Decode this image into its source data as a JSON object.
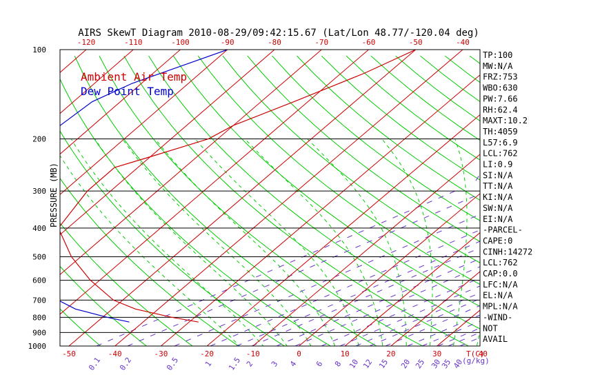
{
  "title": "AIRS SkewT Diagram 2010-08-29/09:42:15.67 (Lat/Lon 48.77/-120.04 deg)",
  "legend": [
    {
      "label": "Ambient Air Temp",
      "color": "#cc0000"
    },
    {
      "label": "Dew Point Temp",
      "color": "#0000cc"
    }
  ],
  "colors": {
    "isotherm": "#cc0000",
    "dry_adiabat": "#00cc00",
    "moist_adiabat": "#00cc00",
    "mixing_ratio": "#6633cc",
    "isobar": "#000000",
    "temperature_profile": "#cc0000",
    "dewpoint_profile": "#0000cc"
  },
  "axes": {
    "y_label": "PRESSURE (MB)",
    "x_unit_label": "T(C)",
    "mixing_ratio_unit_label": "(g/kg)",
    "pressure_ticks": [
      "100",
      "200",
      "300",
      "400",
      "500",
      "600",
      "700",
      "800",
      "900",
      "1000"
    ],
    "bottom_temp_ticks": [
      "-50",
      "-40",
      "-30",
      "-20",
      "-10",
      "0",
      "10",
      "20",
      "30",
      "40"
    ],
    "top_temp_ticks": [
      "-120",
      "-110",
      "-100",
      "-90",
      "-80",
      "-70",
      "-60",
      "-50",
      "-40"
    ],
    "mixing_ratio_ticks": [
      "0.1",
      "0.2",
      "0.5",
      "1",
      "1.5",
      "2",
      "3",
      "4",
      "6",
      "8",
      "10",
      "12",
      "15",
      "20",
      "25",
      "30",
      "35",
      "40"
    ]
  },
  "info_panel": [
    "TP:100",
    "MW:N/A",
    "FRZ:753",
    "WBO:630",
    "PW:7.66",
    "RH:62.4",
    "MAXT:10.2",
    "TH:4059",
    "L57:6.9",
    "LCL:762",
    "LI:0.9",
    "SI:N/A",
    "TT:N/A",
    "KI:N/A",
    "SW:N/A",
    "EI:N/A",
    "-PARCEL-",
    "CAPE:0",
    "CINH:14272",
    "LCL:762",
    "CAP:0.0",
    "LFC:N/A",
    "EL:N/A",
    "MPL:N/A",
    "-WIND-",
    "NOT",
    "AVAIL"
  ],
  "chart_data": {
    "type": "line",
    "title": "AIRS SkewT Diagram 2010-08-29/09:42:15.67 (Lat/Lon 48.77/-120.04 deg)",
    "xlabel": "T(C)",
    "ylabel": "PRESSURE (MB)",
    "y_scale": "log-pressure, inverted",
    "ylim": [
      1000,
      100
    ],
    "xlim_bottom": [
      -50,
      40
    ],
    "xlim_top": [
      -120,
      -40
    ],
    "grid": true,
    "legend_position": "top-left",
    "series": [
      {
        "name": "Ambient Air Temp",
        "pressure": [
          100,
          120,
          150,
          180,
          200,
          230,
          250,
          300,
          400,
          500,
          600,
          700,
          750,
          800,
          830
        ],
        "temperature": [
          -50,
          -55,
          -63,
          -70,
          -72,
          -80,
          -85,
          -85,
          -82,
          -72,
          -62,
          -52,
          -45,
          -35,
          -28
        ]
      },
      {
        "name": "Dew Point Temp",
        "pressure": [
          100,
          130,
          150,
          180,
          200,
          250,
          300,
          400,
          500,
          600,
          700,
          750,
          800,
          830
        ],
        "temperature": [
          -90,
          -102,
          -106,
          -107,
          -107,
          -103,
          -93,
          -84,
          -77,
          -70,
          -64,
          -58,
          -49,
          -43
        ]
      }
    ]
  }
}
